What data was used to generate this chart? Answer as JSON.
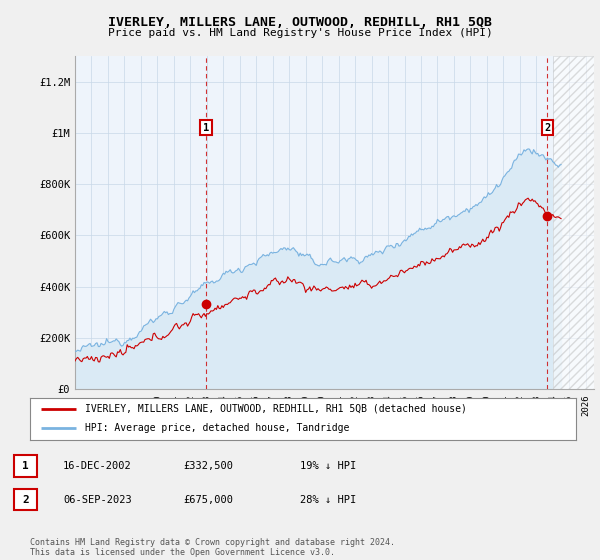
{
  "title": "IVERLEY, MILLERS LANE, OUTWOOD, REDHILL, RH1 5QB",
  "subtitle": "Price paid vs. HM Land Registry's House Price Index (HPI)",
  "ylabel_ticks": [
    "£0",
    "£200K",
    "£400K",
    "£600K",
    "£800K",
    "£1M",
    "£1.2M"
  ],
  "ytick_vals": [
    0,
    200000,
    400000,
    600000,
    800000,
    1000000,
    1200000
  ],
  "ylim": [
    0,
    1300000
  ],
  "xlim_start": 1995.0,
  "xlim_end": 2026.5,
  "hpi_color": "#7ab3e0",
  "hpi_fill_color": "#daeaf5",
  "price_color": "#cc0000",
  "marker1_x": 2002.96,
  "marker1_y": 332500,
  "marker2_x": 2023.67,
  "marker2_y": 675000,
  "marker1_label": "1",
  "marker2_label": "2",
  "hatch_start": 2024.0,
  "legend_red_label": "IVERLEY, MILLERS LANE, OUTWOOD, REDHILL, RH1 5QB (detached house)",
  "legend_blue_label": "HPI: Average price, detached house, Tandridge",
  "table_rows": [
    {
      "num": "1",
      "date": "16-DEC-2002",
      "price": "£332,500",
      "vs_hpi": "19% ↓ HPI"
    },
    {
      "num": "2",
      "date": "06-SEP-2023",
      "price": "£675,000",
      "vs_hpi": "28% ↓ HPI"
    }
  ],
  "footer": "Contains HM Land Registry data © Crown copyright and database right 2024.\nThis data is licensed under the Open Government Licence v3.0.",
  "bg_color": "#f0f0f0",
  "plot_bg_color": "#eef4fb",
  "grid_color": "#c8d8e8"
}
